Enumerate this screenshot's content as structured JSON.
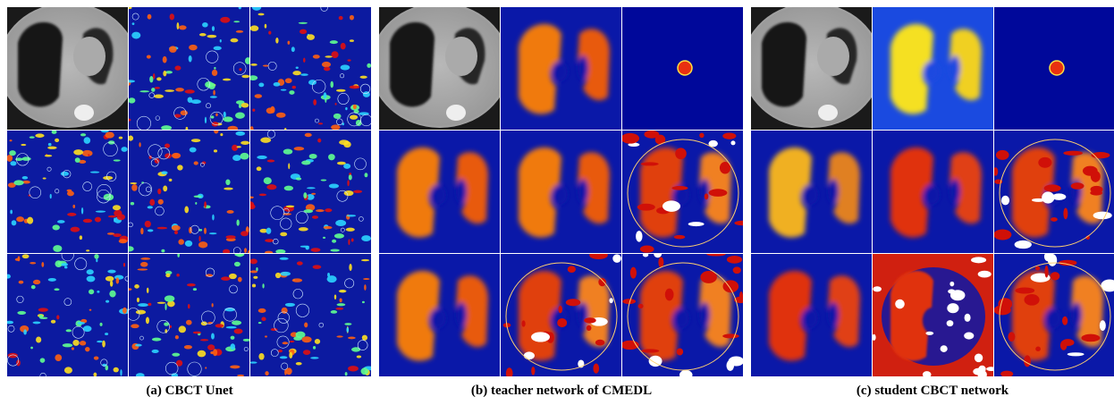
{
  "panels": [
    {
      "caption": "(a) CBCT Unet"
    },
    {
      "caption": "(b) teacher network of CMEDL"
    },
    {
      "caption": "(c) student CBCT network"
    }
  ]
}
